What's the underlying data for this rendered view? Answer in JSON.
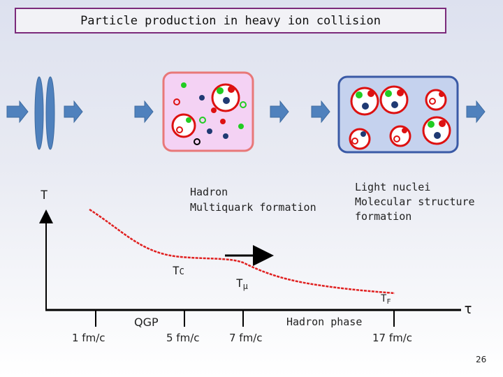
{
  "title": "Particle production in heavy ion collision",
  "labels": {
    "axis_t": "T",
    "hadron_line1": "Hadron",
    "hadron_line2": "Multiquark formation",
    "light_line1": "Light nuclei",
    "light_line2": "Molecular structure",
    "light_line3": "formation",
    "tc": "T",
    "tc_sub": "C",
    "tmu": "T",
    "tmu_sub": "μ",
    "tf": "T",
    "tf_sub": "F",
    "tau": "τ",
    "qgp": "QGP",
    "hadron_phase": "Hadron phase"
  },
  "ticks": [
    {
      "label": "1 fm/c"
    },
    {
      "label": "5 fm/c"
    },
    {
      "label": "7 fm/c"
    },
    {
      "label": "17 fm/c"
    }
  ],
  "page_number": "26",
  "colors": {
    "title_border": "#7b2a7b",
    "arrow_blue": "#4f81bd",
    "box_pink_fill": "#f4d2f4",
    "box_pink_stroke": "#e87878",
    "box_blue_fill": "#c5d2ee",
    "box_blue_stroke": "#3a5aa6",
    "curve": "#e02020",
    "green": "#22cc22",
    "red": "#dd1111",
    "navy": "#1f3a73"
  }
}
